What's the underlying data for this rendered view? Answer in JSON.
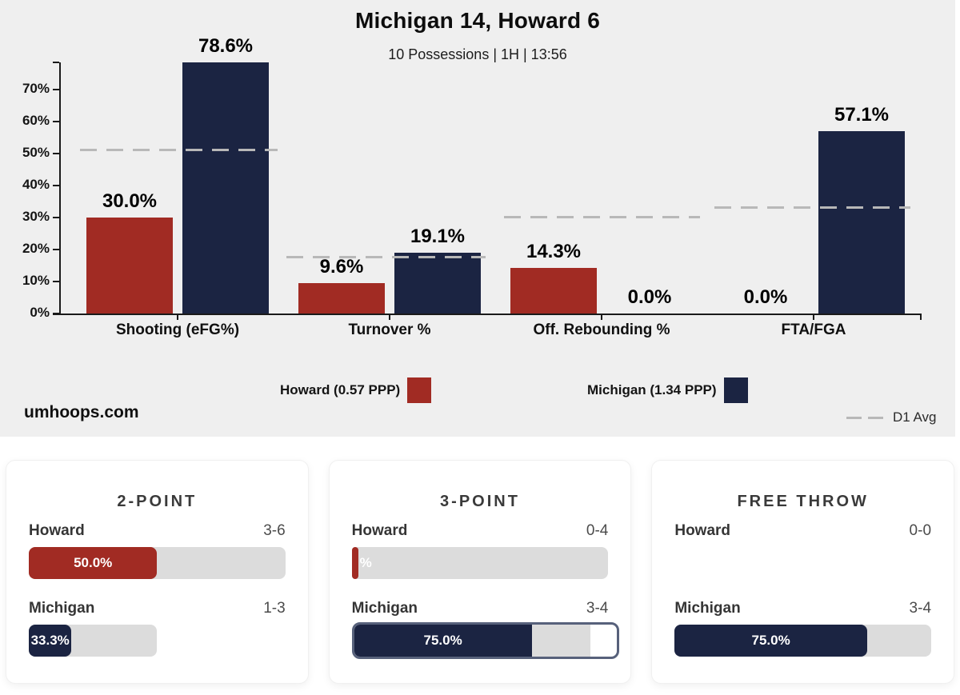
{
  "header": {
    "title": "Michigan 14, Howard 6",
    "subtitle": "10 Possessions | 1H | 13:56"
  },
  "branding": {
    "site": "umhoops.com"
  },
  "colors": {
    "howard": "#a12b23",
    "michigan": "#1b2442",
    "chart_bg": "#efefef",
    "track_grey": "#dcdcdc",
    "d1_dash_grey": "#b8b8b8",
    "highlight_border": "#57617b"
  },
  "chart_data": {
    "type": "bar",
    "title": "Michigan 14, Howard 6",
    "subtitle": "10 Possessions | 1H | 13:56",
    "categories": [
      "Shooting (eFG%)",
      "Turnover %",
      "Off. Rebounding %",
      "FTA/FGA"
    ],
    "series": [
      {
        "name": "Howard (0.57 PPP)",
        "color": "#a12b23",
        "values": [
          30.0,
          9.6,
          14.3,
          0.0
        ],
        "labels": [
          "30.0%",
          "9.6%",
          "14.3%",
          "0.0%"
        ]
      },
      {
        "name": "Michigan (1.34 PPP)",
        "color": "#1b2442",
        "values": [
          78.6,
          19.1,
          0.0,
          57.1
        ],
        "labels": [
          "78.6%",
          "19.1%",
          "0.0%",
          "57.1%"
        ]
      }
    ],
    "d1_avg": {
      "label": "D1 Avg",
      "values": [
        51,
        17.5,
        30,
        33
      ]
    },
    "yticks": [
      "0%",
      "10%",
      "20%",
      "30%",
      "40%",
      "50%",
      "60%",
      "70%"
    ],
    "ylim": [
      0,
      80
    ],
    "grid": false,
    "legend_position": "bottom"
  },
  "cards": [
    {
      "title": "2-POINT",
      "rows": [
        {
          "team": "Howard",
          "record": "3-6",
          "pct": 50.0,
          "pct_label": "50.0%",
          "track_ratio": 1.0,
          "color": "#a12b23"
        },
        {
          "team": "Michigan",
          "record": "1-3",
          "pct": 33.3,
          "pct_label": "33.3%",
          "track_ratio": 0.5,
          "color": "#1b2442"
        }
      ]
    },
    {
      "title": "3-POINT",
      "rows": [
        {
          "team": "Howard",
          "record": "0-4",
          "pct": 0.0,
          "pct_label": "%",
          "track_ratio": 1.0,
          "color": "#a12b23",
          "sliver": true
        },
        {
          "team": "Michigan",
          "record": "3-4",
          "pct": 75.0,
          "pct_label": "75.0%",
          "track_ratio": 1.0,
          "color": "#1b2442",
          "highlight": true
        }
      ]
    },
    {
      "title": "FREE THROW",
      "rows": [
        {
          "team": "Howard",
          "record": "0-0",
          "pct": null,
          "pct_label": "",
          "no_bar": true
        },
        {
          "team": "Michigan",
          "record": "3-4",
          "pct": 75.0,
          "pct_label": "75.0%",
          "track_ratio": 1.0,
          "color": "#1b2442"
        }
      ]
    }
  ]
}
